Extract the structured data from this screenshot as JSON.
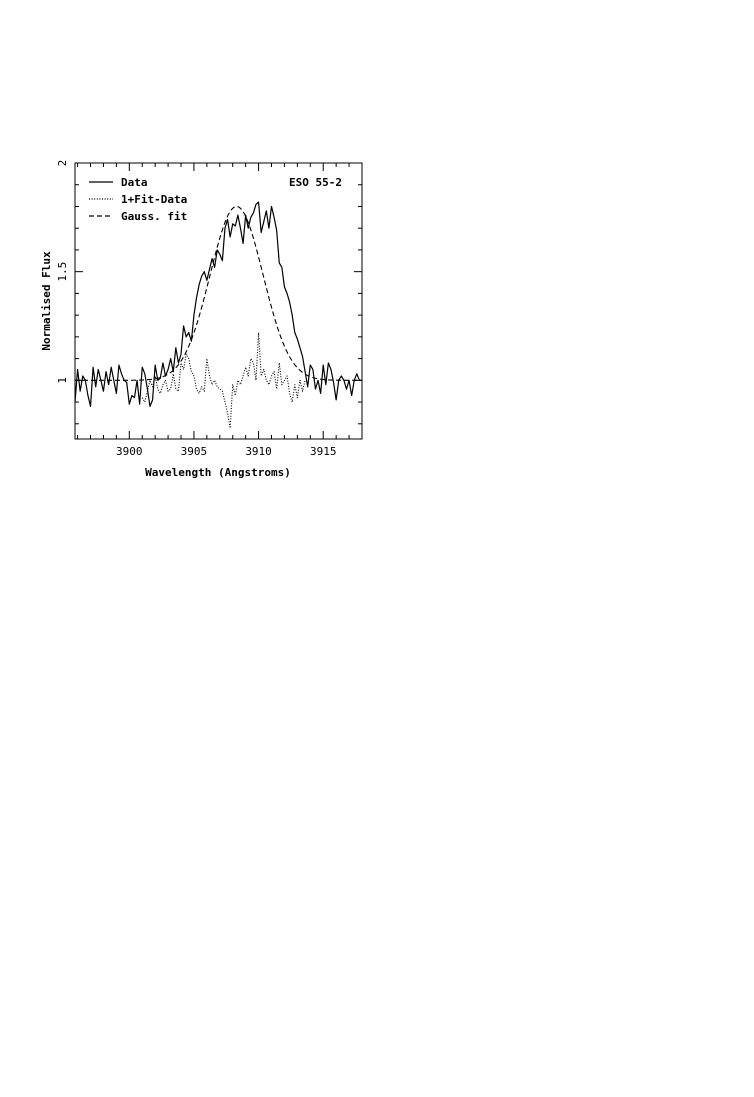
{
  "chart_data": {
    "type": "line",
    "title": "",
    "annotation": "ESO 55-2",
    "xlabel": "Wavelength (Angstroms)",
    "ylabel": "Normalised Flux",
    "xlim": [
      3895.8,
      3918.0
    ],
    "ylim": [
      0.73,
      2.0
    ],
    "x_ticks": [
      3900,
      3905,
      3910,
      3915
    ],
    "x_tick_labels": [
      "3900",
      "3905",
      "3910",
      "3915"
    ],
    "y_ticks": [
      1,
      1.5,
      2
    ],
    "y_tick_labels": [
      "1",
      "1.5",
      "2"
    ],
    "legend_position": "top-left",
    "series": [
      {
        "name": "Data",
        "style": "solid",
        "x": [
          3895.8,
          3896.0,
          3896.2,
          3896.4,
          3896.6,
          3896.8,
          3897.0,
          3897.2,
          3897.4,
          3897.6,
          3897.8,
          3898.0,
          3898.2,
          3898.4,
          3898.6,
          3898.8,
          3899.0,
          3899.2,
          3899.4,
          3899.6,
          3899.8,
          3900.0,
          3900.2,
          3900.4,
          3900.6,
          3900.8,
          3901.0,
          3901.2,
          3901.4,
          3901.6,
          3901.8,
          3902.0,
          3902.2,
          3902.4,
          3902.6,
          3902.8,
          3903.0,
          3903.2,
          3903.4,
          3903.6,
          3903.8,
          3904.0,
          3904.2,
          3904.4,
          3904.6,
          3904.8,
          3905.0,
          3905.2,
          3905.4,
          3905.6,
          3905.8,
          3906.0,
          3906.2,
          3906.4,
          3906.6,
          3906.8,
          3907.0,
          3907.2,
          3907.4,
          3907.6,
          3907.8,
          3908.0,
          3908.2,
          3908.4,
          3908.6,
          3908.8,
          3909.0,
          3909.2,
          3909.4,
          3909.6,
          3909.8,
          3910.0,
          3910.2,
          3910.4,
          3910.6,
          3910.8,
          3911.0,
          3911.2,
          3911.4,
          3911.6,
          3911.8,
          3912.0,
          3912.2,
          3912.4,
          3912.6,
          3912.8,
          3913.0,
          3913.2,
          3913.4,
          3913.6,
          3913.8,
          3914.0,
          3914.2,
          3914.4,
          3914.6,
          3914.8,
          3915.0,
          3915.2,
          3915.4,
          3915.6,
          3915.8,
          3916.0,
          3916.2,
          3916.4,
          3916.6,
          3916.8,
          3917.0,
          3917.2,
          3917.4,
          3917.6,
          3917.8,
          3918.0
        ],
        "y": [
          0.9,
          1.05,
          0.95,
          1.02,
          1.0,
          0.93,
          0.88,
          1.06,
          0.97,
          1.05,
          1.0,
          0.95,
          1.04,
          0.98,
          1.06,
          1.0,
          0.94,
          1.07,
          1.03,
          1.0,
          0.99,
          0.89,
          0.93,
          0.92,
          1.0,
          0.89,
          1.06,
          1.03,
          0.96,
          0.88,
          0.91,
          1.07,
          1.0,
          1.01,
          1.08,
          1.02,
          1.05,
          1.1,
          1.04,
          1.15,
          1.08,
          1.12,
          1.25,
          1.2,
          1.22,
          1.18,
          1.3,
          1.38,
          1.44,
          1.48,
          1.5,
          1.46,
          1.51,
          1.56,
          1.52,
          1.6,
          1.58,
          1.55,
          1.7,
          1.74,
          1.66,
          1.72,
          1.71,
          1.76,
          1.7,
          1.63,
          1.76,
          1.7,
          1.75,
          1.77,
          1.81,
          1.82,
          1.68,
          1.73,
          1.78,
          1.7,
          1.8,
          1.75,
          1.69,
          1.54,
          1.52,
          1.43,
          1.4,
          1.36,
          1.3,
          1.22,
          1.19,
          1.15,
          1.11,
          1.04,
          0.97,
          1.07,
          1.05,
          0.96,
          1.0,
          0.94,
          1.07,
          0.98,
          1.08,
          1.05,
          0.99,
          0.91,
          1.0,
          1.02,
          1.0,
          0.96,
          1.0,
          0.93,
          1.0,
          1.03,
          1.0,
          1.0
        ]
      },
      {
        "name": "1+Fit-Data",
        "style": "dotted",
        "x": [
          3901.0,
          3901.2,
          3901.4,
          3901.6,
          3901.8,
          3902.0,
          3902.2,
          3902.4,
          3902.6,
          3902.8,
          3903.0,
          3903.2,
          3903.4,
          3903.6,
          3903.8,
          3904.0,
          3904.2,
          3904.4,
          3904.6,
          3904.8,
          3905.0,
          3905.2,
          3905.4,
          3905.6,
          3905.8,
          3906.0,
          3906.2,
          3906.4,
          3906.6,
          3906.8,
          3907.0,
          3907.2,
          3907.4,
          3907.6,
          3907.8,
          3908.0,
          3908.2,
          3908.4,
          3908.6,
          3908.8,
          3909.0,
          3909.2,
          3909.4,
          3909.6,
          3909.8,
          3910.0,
          3910.2,
          3910.4,
          3910.6,
          3910.8,
          3911.0,
          3911.2,
          3911.4,
          3911.6,
          3911.8,
          3912.0,
          3912.2,
          3912.4,
          3912.6,
          3912.8,
          3913.0,
          3913.2,
          3913.4,
          3913.6
        ],
        "y": [
          0.92,
          0.9,
          0.95,
          1.0,
          0.97,
          1.02,
          0.96,
          0.94,
          0.98,
          1.0,
          0.95,
          0.96,
          1.03,
          0.96,
          0.95,
          1.08,
          1.05,
          1.12,
          1.1,
          1.04,
          1.02,
          0.96,
          0.94,
          0.97,
          0.95,
          1.1,
          1.02,
          0.98,
          1.0,
          0.97,
          0.96,
          0.95,
          0.9,
          0.85,
          0.78,
          0.98,
          0.93,
          1.0,
          0.98,
          1.02,
          1.06,
          1.02,
          1.1,
          1.08,
          1.0,
          1.22,
          1.02,
          1.05,
          1.0,
          0.98,
          1.02,
          1.04,
          0.96,
          1.08,
          0.98,
          1.0,
          1.02,
          0.94,
          0.9,
          0.98,
          0.92,
          1.0,
          0.95,
          1.0
        ]
      },
      {
        "name": "Gauss. fit",
        "style": "dashed",
        "gaussian": {
          "continuum": 1.0,
          "amplitude": 0.8,
          "center": 3908.3,
          "sigma": 2.05
        }
      }
    ]
  }
}
